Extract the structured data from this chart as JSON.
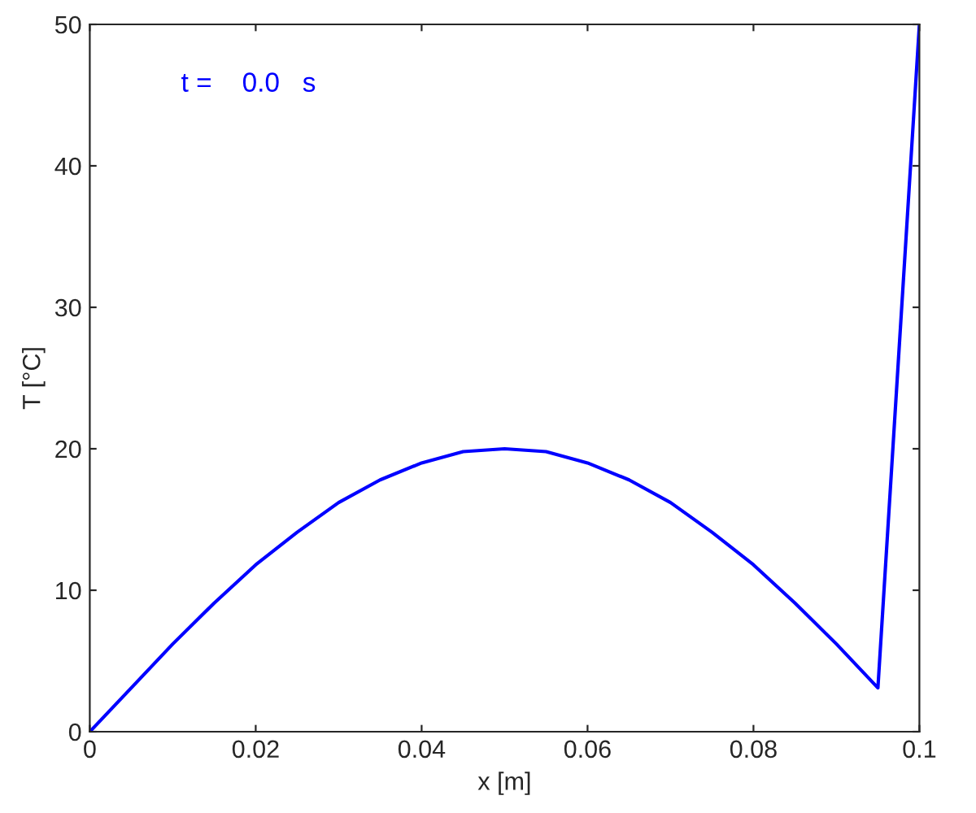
{
  "chart_data": {
    "type": "line",
    "xlabel": "x [m]",
    "ylabel": "T [°C]",
    "annotations": [
      "t =    0.0   s"
    ],
    "x": [
      0,
      0.005,
      0.01,
      0.015,
      0.02,
      0.025,
      0.03,
      0.035,
      0.04,
      0.045,
      0.05,
      0.055,
      0.06,
      0.065,
      0.07,
      0.075,
      0.08,
      0.085,
      0.09,
      0.095,
      0.1
    ],
    "series": [
      {
        "color": "#0000ff",
        "values": [
          0,
          3.1,
          6.2,
          9.1,
          11.8,
          14.1,
          16.2,
          17.8,
          19.0,
          19.8,
          20.0,
          19.8,
          19.0,
          17.8,
          16.2,
          14.1,
          11.8,
          9.1,
          6.2,
          3.1,
          50
        ]
      }
    ],
    "xlim": [
      0,
      0.1
    ],
    "xticks": [
      0,
      0.02,
      0.04,
      0.06,
      0.08,
      0.1
    ],
    "ylim": [
      0,
      50
    ],
    "yticks": [
      0,
      10,
      20,
      30,
      40,
      50
    ],
    "grid": false,
    "legend": false,
    "marker": "none",
    "line_style": "solid"
  }
}
